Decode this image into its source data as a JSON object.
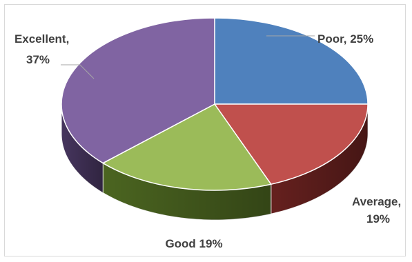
{
  "chart_data": {
    "type": "pie",
    "style": "3d-exploded-none",
    "slices": [
      {
        "category": "Poor",
        "value": 25,
        "label": "Poor, 25%",
        "color": "#4f81bd",
        "side_color": "#2c4d75"
      },
      {
        "category": "Average",
        "value": 19,
        "label_lines": [
          "Average,",
          "19%"
        ],
        "color": "#c0504d",
        "side_color": "#6b2220"
      },
      {
        "category": "Good",
        "value": 19,
        "label": "Good  19%",
        "color": "#9bbb59",
        "side_color": "#4f6a22"
      },
      {
        "category": "Excellent",
        "value": 37,
        "label_lines": [
          "Excellent,",
          "37%"
        ],
        "color": "#8064a2",
        "side_color": "#4a3863"
      }
    ],
    "legend": "none",
    "title": ""
  }
}
